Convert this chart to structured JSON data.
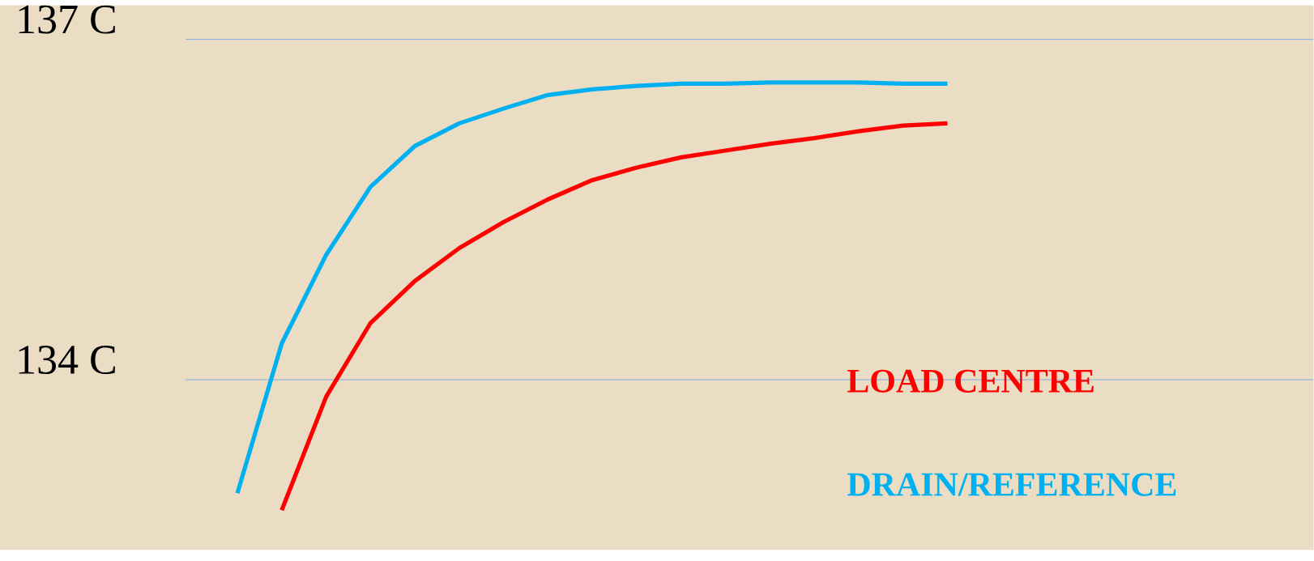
{
  "chart_data": {
    "type": "line",
    "categories": [
      null,
      null,
      null,
      null,
      null,
      null,
      null,
      null,
      null,
      null,
      null,
      null,
      null,
      null,
      null,
      null,
      null
    ],
    "series": [
      {
        "name": "LOAD CENTRE",
        "color": "#ff0000",
        "values": [
          null,
          132.85,
          133.85,
          134.5,
          134.87,
          135.16,
          135.39,
          135.59,
          135.76,
          135.87,
          135.96,
          136.02,
          136.08,
          136.13,
          136.19,
          136.24,
          136.26
        ]
      },
      {
        "name": "DRAIN/REFERENCE",
        "color": "#00b0f0",
        "values": [
          133.0,
          134.32,
          135.1,
          135.7,
          136.06,
          136.26,
          136.39,
          136.51,
          136.56,
          136.59,
          136.61,
          136.61,
          136.62,
          136.62,
          136.62,
          136.61,
          136.61
        ]
      }
    ],
    "ylim": [
      132.5,
      137.3
    ],
    "yticks": [
      {
        "value": 134,
        "label": "134 C"
      },
      {
        "value": 137,
        "label": "137 C"
      }
    ],
    "grid": "y",
    "legend": "bottom right",
    "tick_labels": "y",
    "marker": "none",
    "line_style": "solid"
  }
}
